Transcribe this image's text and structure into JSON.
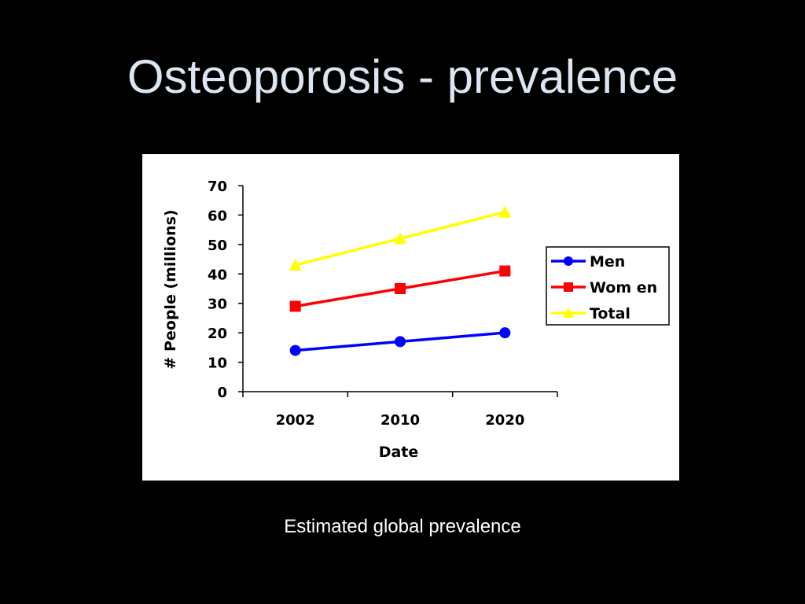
{
  "slide": {
    "title": "Osteoporosis - prevalence",
    "caption": "Estimated global prevalence",
    "background": "#000000"
  },
  "chart_data": {
    "type": "line",
    "categories": [
      "2002",
      "2010",
      "2020"
    ],
    "series": [
      {
        "name": "Men",
        "values": [
          14,
          17,
          20
        ],
        "color": "#0000ff",
        "marker": "circle"
      },
      {
        "name": "Wom en",
        "values": [
          29,
          35,
          41
        ],
        "color": "#ff0000",
        "marker": "square"
      },
      {
        "name": "Total",
        "values": [
          43,
          52,
          61
        ],
        "color": "#ffff00",
        "marker": "triangle"
      }
    ],
    "xlabel": "Date",
    "ylabel": "# People (millions)",
    "ylim": [
      0,
      70
    ],
    "yticks": [
      "0",
      "10",
      "20",
      "30",
      "40",
      "50",
      "60",
      "70"
    ],
    "grid": false,
    "legend": "right"
  }
}
